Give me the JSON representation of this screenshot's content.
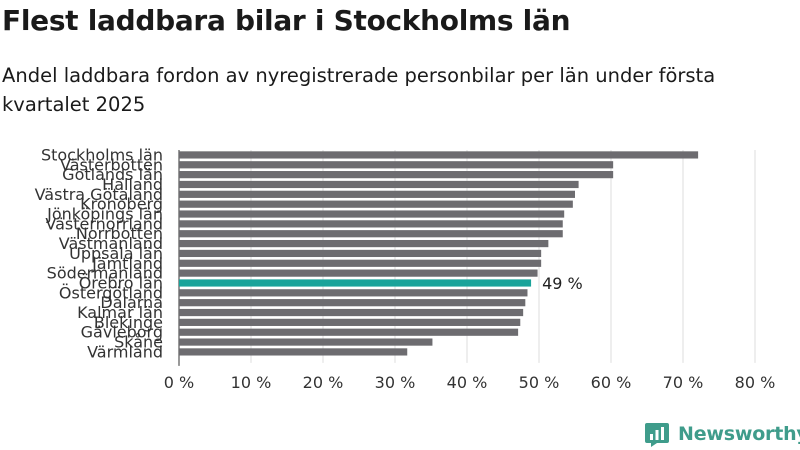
{
  "title": "Flest laddbara bilar i Stockholms län",
  "subtitle": "Andel laddbara fordon av nyregistrerade personbilar per län under första kvartalet 2025",
  "brand": {
    "name": "Newsworthy",
    "color": "#3f9c8b"
  },
  "colors": {
    "bar": "#6d6c70",
    "highlight": "#1aa39a",
    "grid": "#dddddd",
    "axis": "#333333"
  },
  "chart_data": {
    "type": "bar",
    "orientation": "horizontal",
    "categories": [
      "Stockholms län",
      "Västerbotten",
      "Gotlands län",
      "Halland",
      "Västra Götaland",
      "Kronoberg",
      "Jönköpings län",
      "Västernorrland",
      "Norrbotten",
      "Västmanland",
      "Uppsala län",
      "Jämtland",
      "Södermanland",
      "Örebro län",
      "Östergötland",
      "Dalarna",
      "Kalmar län",
      "Blekinge",
      "Gävleborg",
      "Skåne",
      "Värmland"
    ],
    "values": [
      72.1,
      60.3,
      60.3,
      55.5,
      55.0,
      54.7,
      53.5,
      53.3,
      53.3,
      51.3,
      50.3,
      50.3,
      49.8,
      48.9,
      48.4,
      48.1,
      47.8,
      47.4,
      47.1,
      35.2,
      31.7
    ],
    "highlight": "Örebro län",
    "highlight_label": "49 %",
    "xlim": [
      0,
      80
    ],
    "ticks": [
      0,
      10,
      20,
      30,
      40,
      50,
      60,
      70,
      80
    ],
    "tick_labels": [
      "0 %",
      "10 %",
      "20 %",
      "30 %",
      "40 %",
      "50 %",
      "60 %",
      "70 %",
      "80 %"
    ],
    "grid": true,
    "xlabel": "",
    "ylabel": ""
  }
}
